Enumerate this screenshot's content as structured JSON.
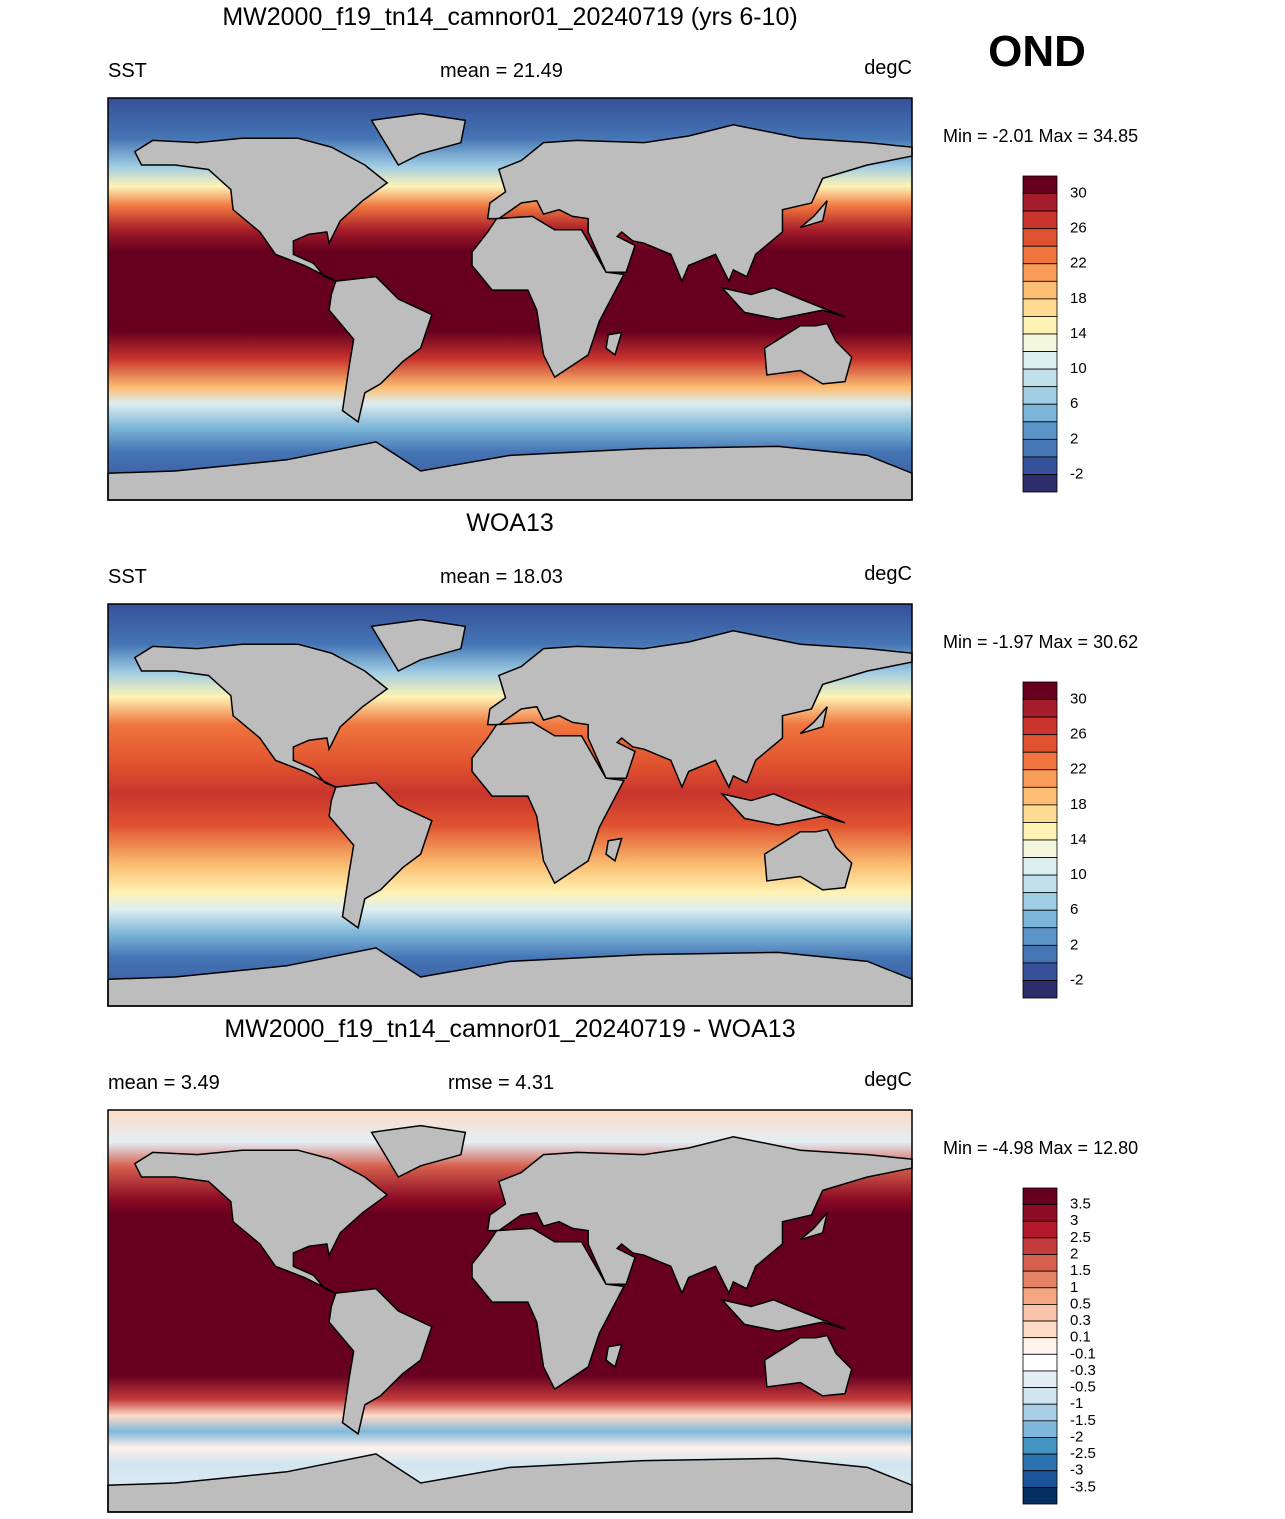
{
  "header": {
    "season": "OND"
  },
  "panels": [
    {
      "title": "MW2000_f19_tn14_camnor01_20240719 (yrs 6-10)",
      "left": "SST",
      "center": "mean =  21.49",
      "right": "degC",
      "range": "Min =  -2.01 Max =  34.85",
      "colorbar": {
        "labels": [
          "30",
          "26",
          "22",
          "18",
          "14",
          "10",
          "6",
          "2",
          "-2"
        ],
        "colors": [
          "#67001f",
          "#a51c2a",
          "#c9352d",
          "#e0522f",
          "#f0753e",
          "#f89c57",
          "#fbbe72",
          "#fddc91",
          "#fef3b5",
          "#f3f7dc",
          "#ddeef0",
          "#c0e1ec",
          "#9fcde4",
          "#7cb5d8",
          "#5b95c8",
          "#4575b4",
          "#36509a",
          "#2d2d6b"
        ]
      }
    },
    {
      "title": "WOA13",
      "left": "SST",
      "center": "mean =  18.03",
      "right": "degC",
      "range": "Min =  -1.97 Max =  30.62",
      "colorbar": {
        "labels": [
          "30",
          "26",
          "22",
          "18",
          "14",
          "10",
          "6",
          "2",
          "-2"
        ],
        "colors": [
          "#67001f",
          "#a51c2a",
          "#c9352d",
          "#e0522f",
          "#f0753e",
          "#f89c57",
          "#fbbe72",
          "#fddc91",
          "#fef3b5",
          "#f3f7dc",
          "#ddeef0",
          "#c0e1ec",
          "#9fcde4",
          "#7cb5d8",
          "#5b95c8",
          "#4575b4",
          "#36509a",
          "#2d2d6b"
        ]
      }
    },
    {
      "title": "MW2000_f19_tn14_camnor01_20240719 - WOA13",
      "left": "mean =   3.49",
      "center": "rmse =   4.31",
      "right": "degC",
      "range": "Min =  -4.98 Max =  12.80",
      "colorbar": {
        "labels": [
          "3.5",
          "3",
          "2.5",
          "2",
          "1.5",
          "1",
          "0.5",
          "0.3",
          "0.1",
          "-0.1",
          "-0.3",
          "-0.5",
          "-1",
          "-1.5",
          "-2",
          "-2.5",
          "-3",
          "-3.5"
        ],
        "colors": [
          "#67001f",
          "#8e0c25",
          "#b2182b",
          "#c43c3c",
          "#d6604d",
          "#e58368",
          "#f4a582",
          "#f9c4a9",
          "#fddbc7",
          "#fff2ec",
          "#ffffff",
          "#e3eef5",
          "#d1e5f0",
          "#a8cfe5",
          "#7fb8da",
          "#4393c3",
          "#2d72b0",
          "#1a559a",
          "#053061"
        ]
      }
    }
  ]
}
